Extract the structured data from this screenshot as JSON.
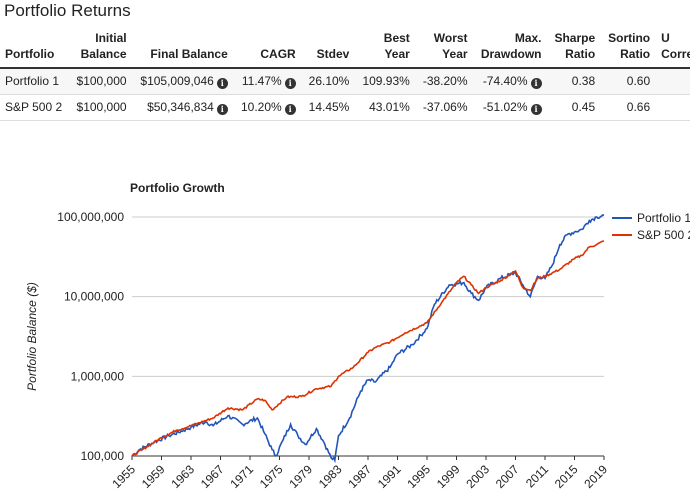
{
  "page": {
    "title": "Portfolio Returns"
  },
  "table": {
    "headers": [
      {
        "line1": "",
        "line2": "Portfolio"
      },
      {
        "line1": "Initial",
        "line2": "Balance"
      },
      {
        "line1": "",
        "line2": "Final Balance"
      },
      {
        "line1": "",
        "line2": "CAGR"
      },
      {
        "line1": "",
        "line2": "Stdev"
      },
      {
        "line1": "Best",
        "line2": "Year"
      },
      {
        "line1": "Worst",
        "line2": "Year"
      },
      {
        "line1": "Max.",
        "line2": "Drawdown"
      },
      {
        "line1": "Sharpe",
        "line2": "Ratio"
      },
      {
        "line1": "Sortino",
        "line2": "Ratio"
      },
      {
        "line1": "U",
        "line2": "Corre"
      }
    ],
    "rows": [
      {
        "portfolio": "Portfolio 1",
        "initial": "$100,000",
        "final": "$105,009,046",
        "cagr": "11.47%",
        "stdev": "26.10%",
        "best": "109.93%",
        "worst": "-38.20%",
        "drawdown": "-74.40%",
        "sharpe": "0.38",
        "sortino": "0.60"
      },
      {
        "portfolio": "S&P 500 2",
        "initial": "$100,000",
        "final": "$50,346,834",
        "cagr": "10.20%",
        "stdev": "14.45%",
        "best": "43.01%",
        "worst": "-37.06%",
        "drawdown": "-51.02%",
        "sharpe": "0.45",
        "sortino": "0.66"
      }
    ]
  },
  "chart_data": {
    "type": "line",
    "title": "Portfolio Growth",
    "xlabel": "",
    "ylabel": "Portfolio Balance ($)",
    "y_scale": "log",
    "ylim": [
      100000,
      100000000
    ],
    "xlim": [
      1955,
      2019
    ],
    "y_ticks": [
      "100,000",
      "1,000,000",
      "10,000,000",
      "100,000,000"
    ],
    "y_tick_values": [
      100000,
      1000000,
      10000000,
      100000000
    ],
    "x_ticks": [
      "1955",
      "1959",
      "1963",
      "1967",
      "1971",
      "1975",
      "1979",
      "1983",
      "1987",
      "1991",
      "1995",
      "1999",
      "2003",
      "2007",
      "2011",
      "2015",
      "2019"
    ],
    "legend_position": "right",
    "grid": "horizontal",
    "series": [
      {
        "name": "Portfolio 1",
        "color": "#2255bb",
        "points": [
          [
            1955,
            100000
          ],
          [
            1956,
            120000
          ],
          [
            1958,
            150000
          ],
          [
            1960,
            180000
          ],
          [
            1962,
            210000
          ],
          [
            1963,
            230000
          ],
          [
            1965,
            270000
          ],
          [
            1966,
            240000
          ],
          [
            1968,
            320000
          ],
          [
            1970,
            250000
          ],
          [
            1972,
            300000
          ],
          [
            1973,
            190000
          ],
          [
            1974,
            120000
          ],
          [
            1974.5,
            100000
          ],
          [
            1975.5,
            160000
          ],
          [
            1976.5,
            250000
          ],
          [
            1977.5,
            180000
          ],
          [
            1978.5,
            140000
          ],
          [
            1980,
            220000
          ],
          [
            1981,
            150000
          ],
          [
            1982,
            95000
          ],
          [
            1982.5,
            88000
          ],
          [
            1983,
            180000
          ],
          [
            1984.5,
            300000
          ],
          [
            1986,
            650000
          ],
          [
            1987,
            900000
          ],
          [
            1988,
            850000
          ],
          [
            1990,
            1300000
          ],
          [
            1991,
            1900000
          ],
          [
            1993,
            2500000
          ],
          [
            1995,
            4000000
          ],
          [
            1996,
            8000000
          ],
          [
            1998,
            14000000
          ],
          [
            2000,
            15000000
          ],
          [
            2001,
            11000000
          ],
          [
            2002,
            9000000
          ],
          [
            2003,
            13000000
          ],
          [
            2005,
            17000000
          ],
          [
            2007,
            20000000
          ],
          [
            2008,
            14000000
          ],
          [
            2009,
            10000000
          ],
          [
            2010,
            18000000
          ],
          [
            2011,
            17000000
          ],
          [
            2012,
            25000000
          ],
          [
            2013,
            45000000
          ],
          [
            2014,
            60000000
          ],
          [
            2015,
            65000000
          ],
          [
            2016,
            70000000
          ],
          [
            2017,
            90000000
          ],
          [
            2018,
            100000000
          ],
          [
            2019,
            105000000
          ]
        ]
      },
      {
        "name": "S&P 500 2",
        "color": "#dd3300",
        "points": [
          [
            1955,
            100000
          ],
          [
            1957,
            130000
          ],
          [
            1959,
            170000
          ],
          [
            1961,
            210000
          ],
          [
            1963,
            240000
          ],
          [
            1966,
            300000
          ],
          [
            1968,
            400000
          ],
          [
            1970,
            380000
          ],
          [
            1972,
            520000
          ],
          [
            1973,
            500000
          ],
          [
            1974,
            380000
          ],
          [
            1976,
            550000
          ],
          [
            1978,
            560000
          ],
          [
            1980,
            700000
          ],
          [
            1982,
            750000
          ],
          [
            1983,
            1000000
          ],
          [
            1985,
            1300000
          ],
          [
            1987,
            2000000
          ],
          [
            1988,
            2300000
          ],
          [
            1990,
            2700000
          ],
          [
            1992,
            3500000
          ],
          [
            1995,
            4700000
          ],
          [
            1997,
            8500000
          ],
          [
            1999,
            15000000
          ],
          [
            2000,
            18000000
          ],
          [
            2001,
            14000000
          ],
          [
            2002,
            11000000
          ],
          [
            2003,
            13000000
          ],
          [
            2005,
            16000000
          ],
          [
            2007,
            21000000
          ],
          [
            2008,
            13000000
          ],
          [
            2009,
            12000000
          ],
          [
            2010,
            17000000
          ],
          [
            2011,
            18000000
          ],
          [
            2013,
            22000000
          ],
          [
            2015,
            30000000
          ],
          [
            2016,
            33000000
          ],
          [
            2017,
            42000000
          ],
          [
            2018,
            45000000
          ],
          [
            2019,
            50000000
          ]
        ]
      }
    ]
  }
}
